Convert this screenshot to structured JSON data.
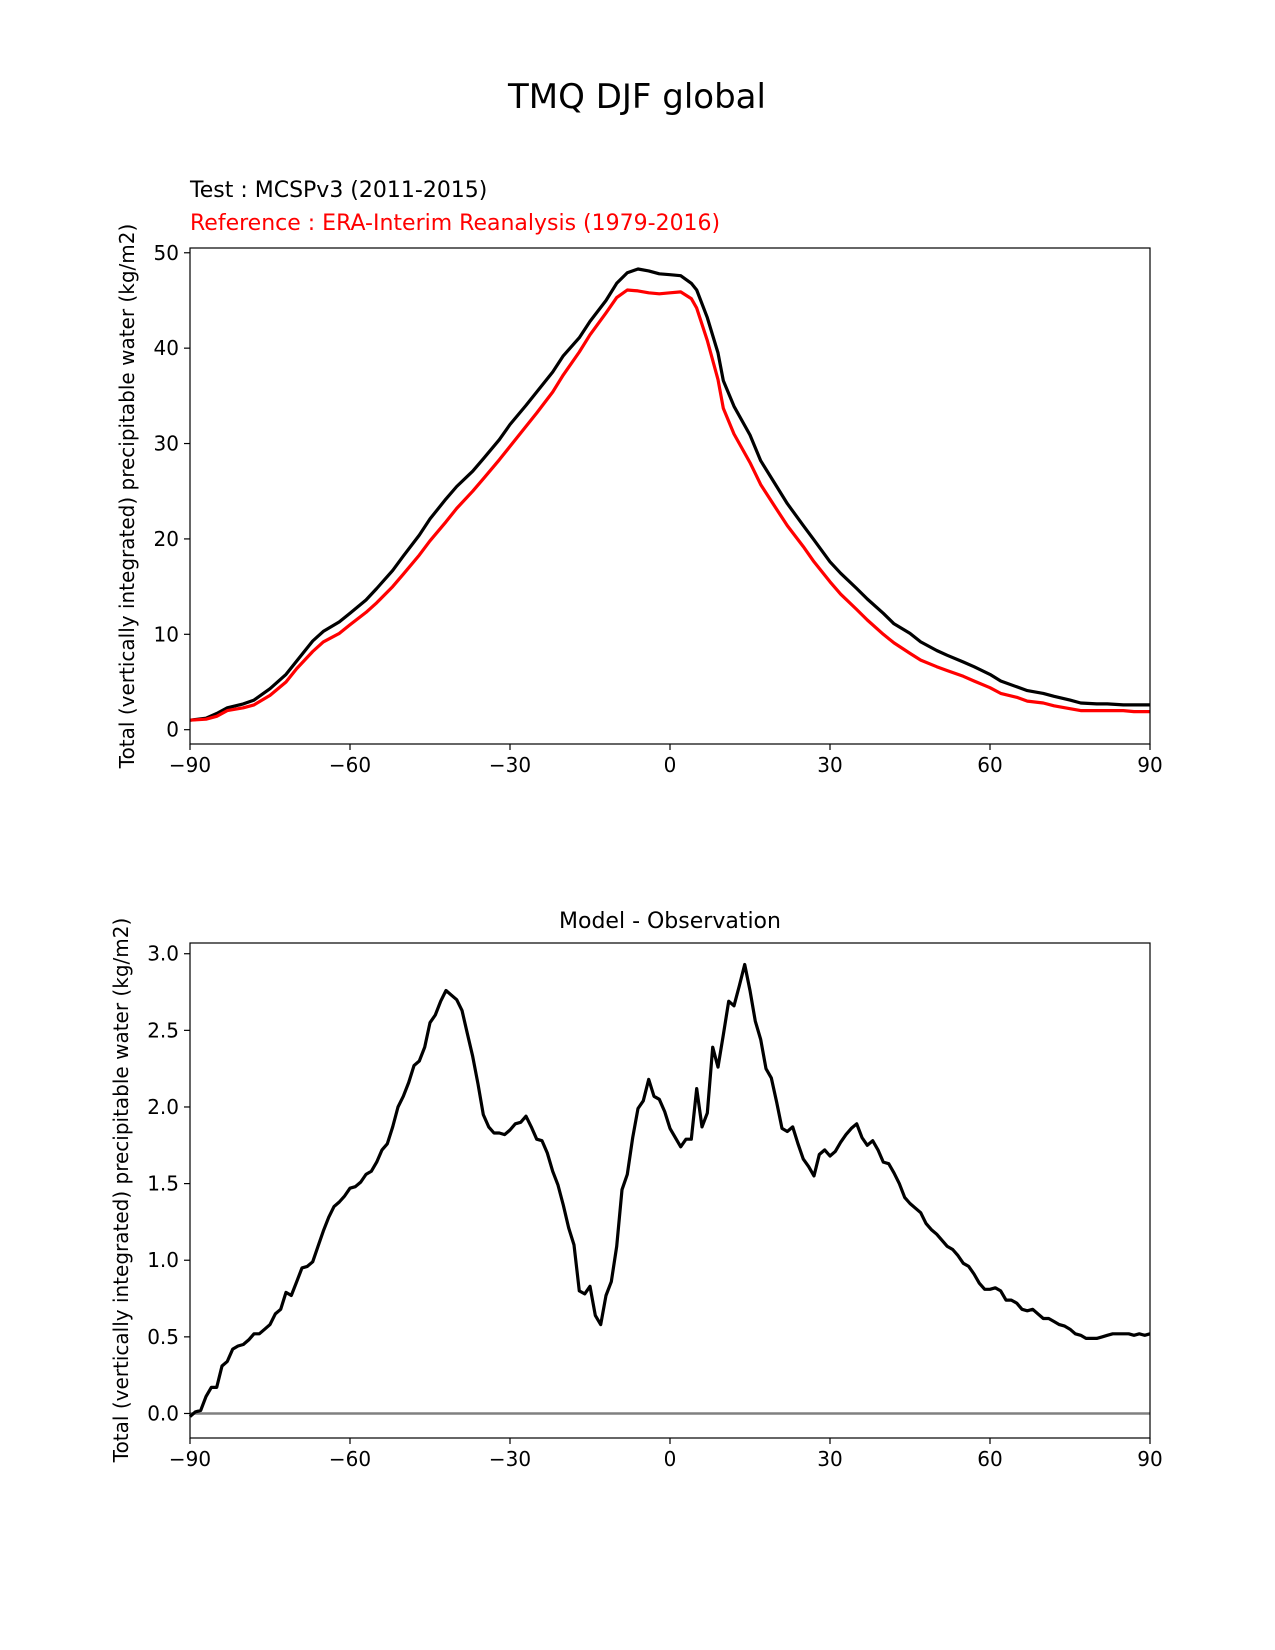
{
  "figure": {
    "title": "TMQ DJF global"
  },
  "chart_data": [
    {
      "type": "line",
      "test_label": "Test : MCSPv3 (2011-2015)",
      "reference_label": "Reference : ERA-Interim Reanalysis (1979-2016)",
      "title": "",
      "xlabel": "",
      "ylabel": "Total (vertically integrated) precipitable water (kg/m2)",
      "xlim": [
        -90,
        90
      ],
      "ylim": [
        -1.5,
        50.5
      ],
      "xticks": [
        -90,
        -60,
        -30,
        0,
        30,
        60,
        90
      ],
      "xtick_labels": [
        "−90",
        "−60",
        "−30",
        "0",
        "30",
        "60",
        "90"
      ],
      "yticks": [
        0,
        10,
        20,
        30,
        40,
        50
      ],
      "ytick_labels": [
        "0",
        "10",
        "20",
        "30",
        "40",
        "50"
      ],
      "grid": false,
      "colors": {
        "test": "#000000",
        "reference": "#ff0000"
      },
      "series": [
        {
          "role": "test",
          "x": [
            -90,
            -87,
            -85,
            -83,
            -80,
            -78,
            -75,
            -72,
            -70,
            -67,
            -65,
            -62,
            -60,
            -57,
            -55,
            -52,
            -50,
            -47,
            -45,
            -42,
            -40,
            -37,
            -35,
            -32,
            -30,
            -27,
            -25,
            -22,
            -20,
            -17,
            -15,
            -12,
            -10,
            -8,
            -6,
            -4,
            -2,
            0,
            2,
            4,
            5,
            7,
            9,
            10,
            12,
            15,
            17,
            20,
            22,
            25,
            27,
            30,
            32,
            35,
            37,
            40,
            42,
            45,
            47,
            50,
            52,
            55,
            57,
            60,
            62,
            65,
            67,
            70,
            72,
            75,
            77,
            80,
            82,
            85,
            87,
            90
          ],
          "y": [
            1.0,
            1.2,
            1.7,
            2.3,
            2.7,
            3.1,
            4.3,
            5.8,
            7.2,
            9.3,
            10.3,
            11.3,
            12.2,
            13.6,
            14.8,
            16.7,
            18.2,
            20.4,
            22.1,
            24.2,
            25.5,
            27.1,
            28.4,
            30.4,
            32.0,
            34.0,
            35.4,
            37.5,
            39.2,
            41.1,
            42.8,
            45.0,
            46.8,
            47.9,
            48.3,
            48.1,
            47.8,
            47.7,
            47.6,
            46.8,
            46.1,
            43.2,
            39.5,
            36.6,
            33.9,
            30.9,
            28.2,
            25.5,
            23.7,
            21.4,
            19.9,
            17.6,
            16.4,
            14.8,
            13.7,
            12.2,
            11.1,
            10.1,
            9.2,
            8.3,
            7.8,
            7.1,
            6.6,
            5.8,
            5.1,
            4.5,
            4.1,
            3.8,
            3.5,
            3.1,
            2.8,
            2.7,
            2.7,
            2.6,
            2.6,
            2.6
          ]
        },
        {
          "role": "reference",
          "x": [
            -90,
            -87,
            -85,
            -83,
            -80,
            -78,
            -75,
            -72,
            -70,
            -67,
            -65,
            -62,
            -60,
            -57,
            -55,
            -52,
            -50,
            -47,
            -45,
            -42,
            -40,
            -37,
            -35,
            -32,
            -30,
            -27,
            -25,
            -22,
            -20,
            -17,
            -15,
            -12,
            -10,
            -8,
            -6,
            -4,
            -2,
            0,
            2,
            4,
            5,
            7,
            9,
            10,
            12,
            15,
            17,
            20,
            22,
            25,
            27,
            30,
            32,
            35,
            37,
            40,
            42,
            45,
            47,
            50,
            52,
            55,
            57,
            60,
            62,
            65,
            67,
            70,
            72,
            75,
            77,
            80,
            82,
            85,
            87,
            90
          ],
          "y": [
            1.0,
            1.1,
            1.4,
            2.0,
            2.3,
            2.6,
            3.6,
            5.0,
            6.4,
            8.2,
            9.2,
            10.1,
            11.0,
            12.3,
            13.3,
            15.0,
            16.3,
            18.3,
            19.8,
            21.8,
            23.2,
            25.0,
            26.3,
            28.3,
            29.7,
            31.8,
            33.2,
            35.4,
            37.2,
            39.6,
            41.4,
            43.7,
            45.3,
            46.1,
            46.0,
            45.8,
            45.7,
            45.8,
            45.9,
            45.2,
            44.2,
            40.8,
            36.7,
            33.7,
            31.0,
            28.0,
            25.7,
            23.1,
            21.4,
            19.2,
            17.6,
            15.5,
            14.2,
            12.6,
            11.5,
            10.0,
            9.1,
            8.0,
            7.3,
            6.6,
            6.2,
            5.6,
            5.1,
            4.4,
            3.8,
            3.4,
            3.0,
            2.8,
            2.5,
            2.2,
            2.0,
            2.0,
            2.0,
            2.0,
            1.9,
            1.9
          ]
        }
      ]
    },
    {
      "type": "line",
      "title": "Model - Observation",
      "xlabel": "",
      "ylabel": "Total (vertically integrated) precipitable water (kg/m2)",
      "xlim": [
        -90,
        90
      ],
      "ylim": [
        -0.16,
        3.07
      ],
      "xticks": [
        -90,
        -60,
        -30,
        0,
        30,
        60,
        90
      ],
      "xtick_labels": [
        "−90",
        "−60",
        "−30",
        "0",
        "30",
        "60",
        "90"
      ],
      "yticks": [
        0.0,
        0.5,
        1.0,
        1.5,
        2.0,
        2.5,
        3.0
      ],
      "ytick_labels": [
        "0.0",
        "0.5",
        "1.0",
        "1.5",
        "2.0",
        "2.5",
        "3.0"
      ],
      "grid": false,
      "zero_line": 0,
      "colors": {
        "difference": "#000000",
        "zero_line": "#808080"
      },
      "series": [
        {
          "role": "difference",
          "x": [
            -90,
            -89,
            -88,
            -87,
            -86,
            -85,
            -84,
            -83,
            -82,
            -81,
            -80,
            -79,
            -78,
            -77,
            -76,
            -75,
            -74,
            -73,
            -72,
            -71,
            -70,
            -69,
            -68,
            -67,
            -66,
            -65,
            -64,
            -63,
            -62,
            -61,
            -60,
            -59,
            -58,
            -57,
            -56,
            -55,
            -54,
            -53,
            -52,
            -51,
            -50,
            -49,
            -48,
            -47,
            -46,
            -45,
            -44,
            -43,
            -42,
            -41,
            -40,
            -39,
            -38,
            -37,
            -36,
            -35,
            -34,
            -33,
            -32,
            -31,
            -30,
            -29,
            -28,
            -27,
            -26,
            -25,
            -24,
            -23,
            -22,
            -21,
            -20,
            -19,
            -18,
            -17,
            -16,
            -15,
            -14,
            -13,
            -12,
            -11,
            -10,
            -9,
            -8,
            -7,
            -6,
            -5,
            -4,
            -3,
            -2,
            -1,
            0,
            1,
            2,
            3,
            4,
            5,
            6,
            7,
            8,
            9,
            10,
            11,
            12,
            13,
            14,
            15,
            16,
            17,
            18,
            19,
            20,
            21,
            22,
            23,
            24,
            25,
            26,
            27,
            28,
            29,
            30,
            31,
            32,
            33,
            34,
            35,
            36,
            37,
            38,
            39,
            40,
            41,
            42,
            43,
            44,
            45,
            46,
            47,
            48,
            49,
            50,
            51,
            52,
            53,
            54,
            55,
            56,
            57,
            58,
            59,
            60,
            61,
            62,
            63,
            64,
            65,
            66,
            67,
            68,
            69,
            70,
            71,
            72,
            73,
            74,
            75,
            76,
            77,
            78,
            79,
            80,
            81,
            82,
            83,
            84,
            85,
            86,
            87,
            88,
            89,
            90
          ],
          "y": [
            -0.02,
            0.01,
            0.02,
            0.11,
            0.17,
            0.17,
            0.31,
            0.34,
            0.42,
            0.44,
            0.45,
            0.48,
            0.52,
            0.52,
            0.55,
            0.58,
            0.65,
            0.68,
            0.79,
            0.77,
            0.86,
            0.95,
            0.96,
            0.99,
            1.09,
            1.19,
            1.28,
            1.35,
            1.38,
            1.42,
            1.47,
            1.48,
            1.51,
            1.56,
            1.58,
            1.64,
            1.72,
            1.76,
            1.87,
            2.0,
            2.07,
            2.16,
            2.27,
            2.3,
            2.39,
            2.55,
            2.6,
            2.69,
            2.76,
            2.73,
            2.7,
            2.63,
            2.48,
            2.33,
            2.15,
            1.95,
            1.87,
            1.83,
            1.83,
            1.82,
            1.85,
            1.89,
            1.9,
            1.94,
            1.87,
            1.79,
            1.78,
            1.7,
            1.58,
            1.49,
            1.36,
            1.21,
            1.1,
            0.8,
            0.78,
            0.83,
            0.64,
            0.58,
            0.77,
            0.86,
            1.09,
            1.46,
            1.56,
            1.8,
            1.99,
            2.04,
            2.18,
            2.07,
            2.05,
            1.97,
            1.86,
            1.8,
            1.74,
            1.79,
            1.79,
            2.12,
            1.87,
            1.96,
            2.39,
            2.26,
            2.47,
            2.69,
            2.66,
            2.79,
            2.93,
            2.76,
            2.56,
            2.44,
            2.25,
            2.19,
            2.03,
            1.86,
            1.84,
            1.87,
            1.76,
            1.66,
            1.61,
            1.55,
            1.69,
            1.72,
            1.68,
            1.71,
            1.77,
            1.82,
            1.86,
            1.89,
            1.8,
            1.75,
            1.78,
            1.72,
            1.64,
            1.63,
            1.57,
            1.5,
            1.41,
            1.37,
            1.34,
            1.31,
            1.24,
            1.2,
            1.17,
            1.13,
            1.09,
            1.07,
            1.03,
            0.98,
            0.96,
            0.91,
            0.85,
            0.81,
            0.81,
            0.82,
            0.8,
            0.74,
            0.74,
            0.72,
            0.68,
            0.67,
            0.68,
            0.65,
            0.62,
            0.62,
            0.6,
            0.58,
            0.57,
            0.55,
            0.52,
            0.51,
            0.49,
            0.49,
            0.49,
            0.5,
            0.51,
            0.52,
            0.52,
            0.52,
            0.52,
            0.51,
            0.52,
            0.51,
            0.52
          ]
        }
      ]
    }
  ]
}
